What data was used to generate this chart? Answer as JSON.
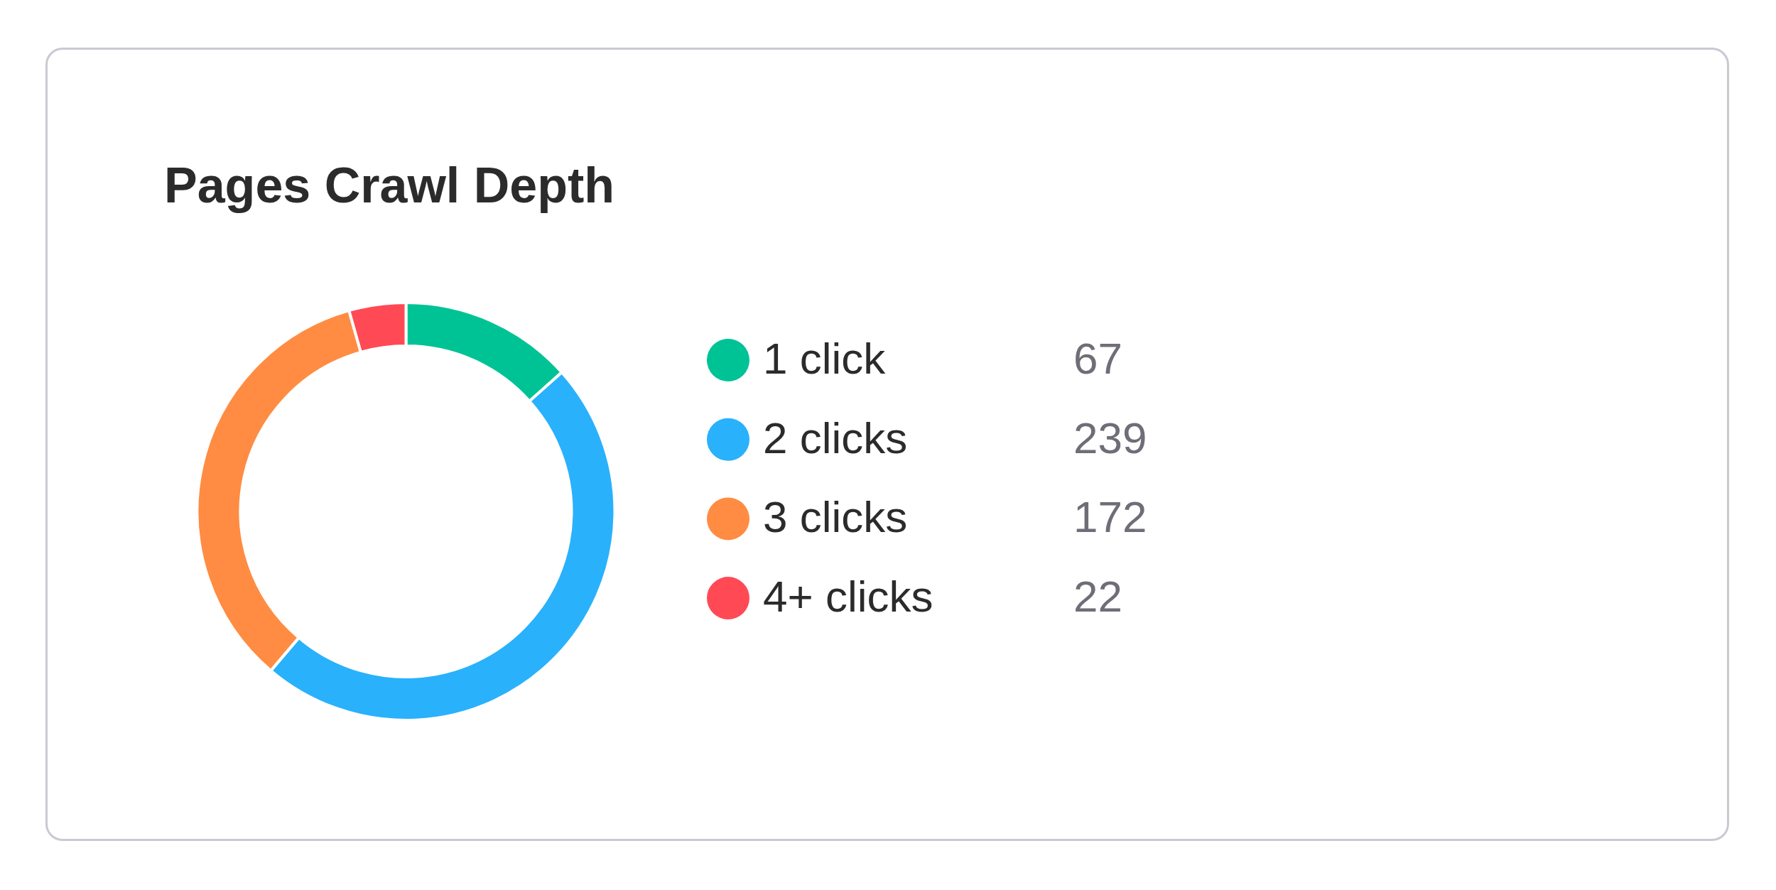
{
  "chart_data": {
    "type": "donut",
    "title": "Pages Crawl Depth",
    "categories": [
      "1 click",
      "2 clicks",
      "3 clicks",
      "4+ clicks"
    ],
    "values": [
      67,
      239,
      172,
      22
    ],
    "colors": [
      "#00c395",
      "#29b1fc",
      "#ff8c42",
      "#ff4a55"
    ],
    "data_labels": true,
    "legend": "right"
  }
}
